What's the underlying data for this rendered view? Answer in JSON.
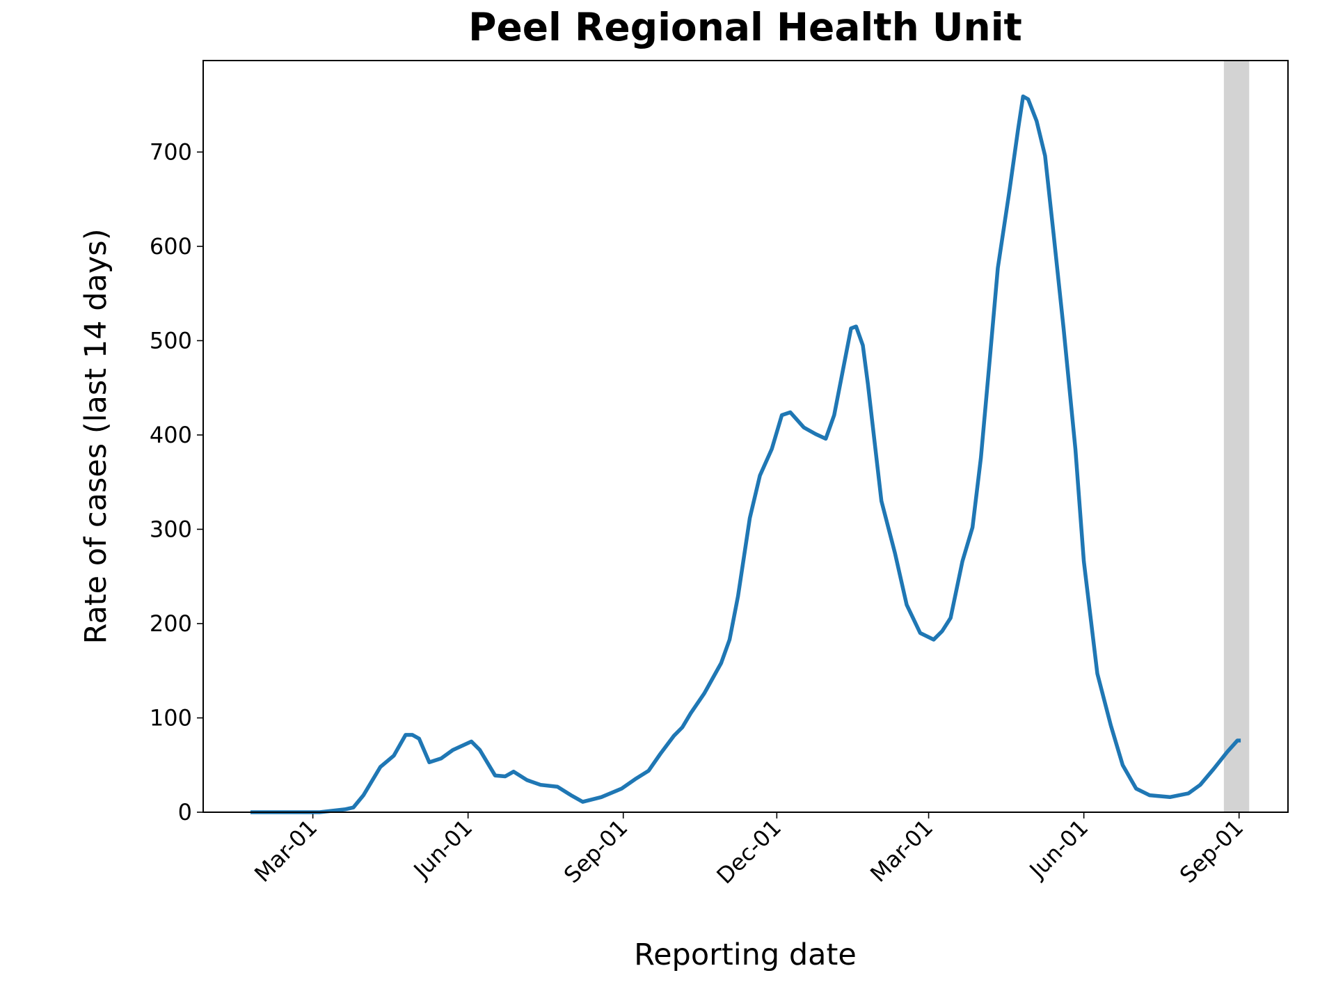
{
  "chart_data": {
    "type": "line",
    "title": "Peel Regional Health Unit",
    "xlabel": "Reporting date",
    "ylabel": "Rate of cases (last 14 days)",
    "x": [
      23,
      64,
      79,
      84,
      90,
      100,
      108,
      115,
      119,
      123,
      129,
      136,
      143,
      154,
      159,
      168,
      174,
      179,
      187,
      195,
      205,
      213,
      220,
      231,
      243,
      251,
      259,
      266,
      274,
      279,
      284,
      292,
      302,
      307,
      312,
      319,
      325,
      332,
      338,
      343,
      351,
      358,
      364,
      369,
      374,
      379,
      382,
      386,
      389,
      397,
      405,
      412,
      420,
      428,
      433,
      438,
      445,
      451,
      456,
      461,
      466,
      473,
      478,
      481,
      484,
      489,
      494,
      499,
      505,
      512,
      517,
      525,
      533,
      540,
      548,
      556,
      568,
      579,
      586,
      594,
      602,
      608,
      610
    ],
    "values": [
      0,
      0,
      3,
      5,
      18,
      48,
      60,
      82,
      82,
      78,
      53,
      57,
      66,
      75,
      66,
      39,
      38,
      43,
      34,
      29,
      27,
      18,
      11,
      16,
      25,
      35,
      44,
      62,
      81,
      90,
      105,
      126,
      158,
      183,
      229,
      312,
      357,
      385,
      421,
      424,
      408,
      401,
      396,
      421,
      467,
      513,
      515,
      495,
      454,
      330,
      275,
      220,
      190,
      183,
      192,
      206,
      266,
      302,
      376,
      476,
      577,
      660,
      724,
      759,
      756,
      733,
      696,
      614,
      513,
      385,
      266,
      147,
      92,
      50,
      25,
      18,
      16,
      20,
      29,
      46,
      64,
      76,
      76
    ],
    "color": "#1f77b4",
    "span": [
      600,
      615
    ],
    "span_color": "#d3d3d3",
    "xlim": [
      -5,
      638
    ],
    "xticks": [
      {
        "value": 60,
        "label": "Mar-01"
      },
      {
        "value": 152,
        "label": "Jun-01"
      },
      {
        "value": 244,
        "label": "Sep-01"
      },
      {
        "value": 335,
        "label": "Dec-01"
      },
      {
        "value": 425,
        "label": "Mar-01"
      },
      {
        "value": 517,
        "label": "Jun-01"
      },
      {
        "value": 609,
        "label": "Sep-01"
      }
    ],
    "ylim": [
      0,
      797
    ],
    "yticks": [
      0,
      100,
      200,
      300,
      400,
      500,
      600,
      700
    ],
    "grid": false
  }
}
